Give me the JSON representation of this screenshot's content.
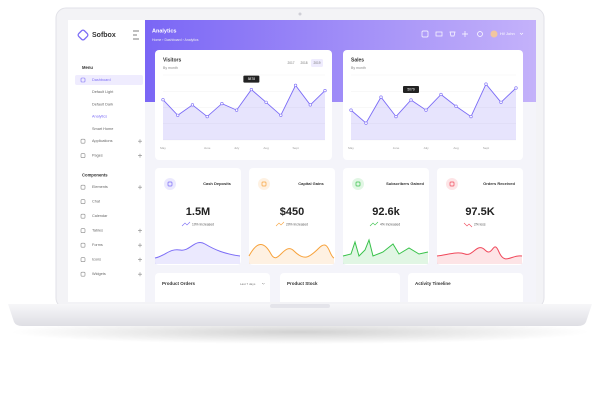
{
  "sidebar": {
    "brand": "Sofbox",
    "sections": [
      {
        "title": "Menu",
        "items": [
          {
            "label": "Dashboard",
            "active": true,
            "expand": false,
            "sub": false
          },
          {
            "label": "Default Light",
            "active": false,
            "expand": false,
            "sub": true
          },
          {
            "label": "Default Dark",
            "active": false,
            "expand": false,
            "sub": true
          },
          {
            "label": "Analytics",
            "active": true,
            "expand": false,
            "sub": true
          },
          {
            "label": "Smart Home",
            "active": false,
            "expand": false,
            "sub": true
          },
          {
            "label": "Applications",
            "active": false,
            "expand": true,
            "sub": false
          },
          {
            "label": "Pages",
            "active": false,
            "expand": true,
            "sub": false
          }
        ]
      },
      {
        "title": "Components",
        "items": [
          {
            "label": "Elements",
            "active": false,
            "expand": true,
            "sub": false
          },
          {
            "label": "Chat",
            "active": false,
            "expand": false,
            "sub": false
          },
          {
            "label": "Calendar",
            "active": false,
            "expand": false,
            "sub": false
          },
          {
            "label": "Tables",
            "active": false,
            "expand": true,
            "sub": false
          },
          {
            "label": "Forms",
            "active": false,
            "expand": true,
            "sub": false
          },
          {
            "label": "Icons",
            "active": false,
            "expand": true,
            "sub": false
          },
          {
            "label": "Widgets",
            "active": false,
            "expand": true,
            "sub": false
          }
        ]
      }
    ]
  },
  "header": {
    "title": "Analytics",
    "breadcrumb": "Home › Dashboard › Analytics",
    "user": "Hi! John"
  },
  "charts": [
    {
      "type": "line",
      "title": "Visitors",
      "subtitle": "By month",
      "years": [
        "2017",
        "2018",
        "2019"
      ],
      "categories": [
        "May",
        null,
        null,
        "June",
        null,
        "July",
        null,
        "Aug",
        null,
        "Sept",
        null,
        null
      ],
      "values": [
        5100,
        3900,
        4700,
        3800,
        4800,
        4300,
        5878,
        4900,
        3900,
        6200,
        4700,
        5800
      ],
      "tooltip_index": 6,
      "ylim": [
        2000,
        7000
      ],
      "color": "#7b6cf6"
    },
    {
      "type": "line",
      "title": "Sales",
      "subtitle": "By month",
      "categories": [
        "May",
        null,
        null,
        "June",
        null,
        "July",
        null,
        "Aug",
        null,
        "Sept",
        null,
        null
      ],
      "values": [
        4300,
        3300,
        5300,
        3800,
        5079,
        4300,
        5500,
        4600,
        3800,
        6300,
        4900,
        6000
      ],
      "tooltip_index": 4,
      "ylim": [
        2000,
        7000
      ],
      "color": "#7b6cf6"
    }
  ],
  "stats": [
    {
      "title": "Cash Deposits",
      "value": "1.5M",
      "change": "10% Increased",
      "color": "#7b6cf6",
      "up": true
    },
    {
      "title": "Capital Gains",
      "value": "$450",
      "change": "20% Increased",
      "color": "#f7a23b",
      "up": true
    },
    {
      "title": "Subscribers Gained",
      "value": "92.6k",
      "change": "4% Increased",
      "color": "#38c24a",
      "up": true
    },
    {
      "title": "Orders Received",
      "value": "97.5K",
      "change": "2% loss",
      "color": "#f0475a",
      "up": false
    }
  ],
  "panels": [
    "Product Orders",
    "Product Stock",
    "Activity Timeline"
  ],
  "panel_filter": "Last 7 days"
}
